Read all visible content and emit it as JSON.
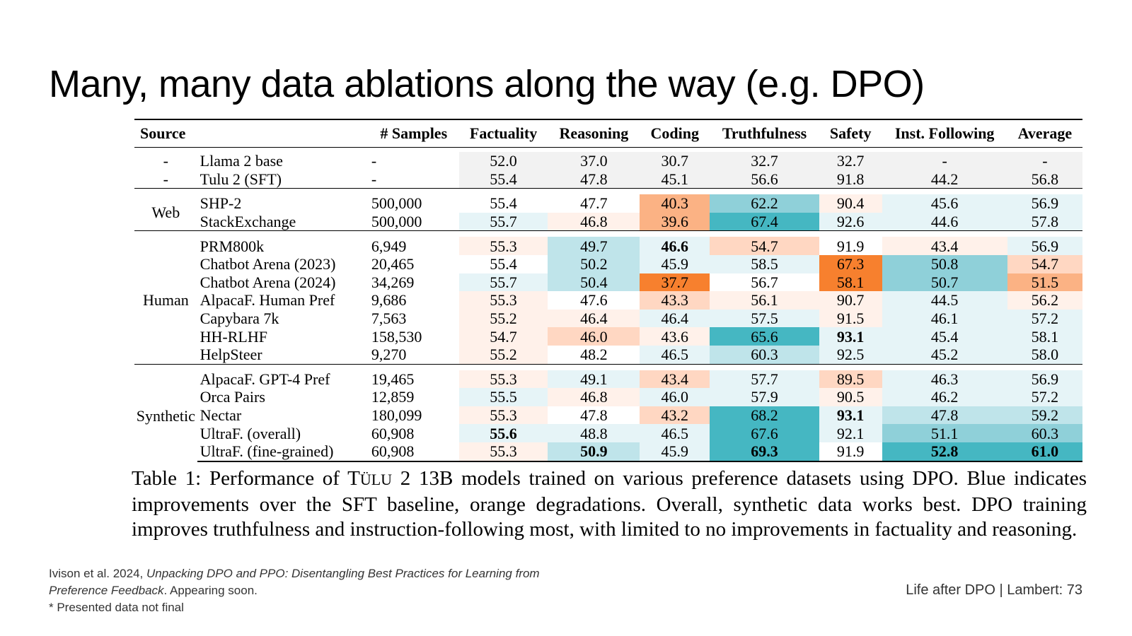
{
  "slide": {
    "title": "Many, many data ablations along the way (e.g. DPO)",
    "footer_right": "Life after DPO | Lambert: 73"
  },
  "citation": {
    "authors": "Ivison et al. 2024, ",
    "paper_title_part1": "Unpacking DPO and PPO: Disentangling Best Practices for Learning from",
    "paper_title_part2": "Preference Feedback",
    "status": ". Appearing soon.",
    "note": "* Presented data not final"
  },
  "table": {
    "headers": [
      "Source",
      "",
      "# Samples",
      "Factuality",
      "Reasoning",
      "Coding",
      "Truthfulness",
      "Safety",
      "Inst. Following",
      "Average"
    ],
    "colors": {
      "b1": "#e6f4f7",
      "b2": "#bfe4ea",
      "b3": "#8fd0d9",
      "b4": "#45b7c2",
      "o1": "#fff1ea",
      "o2": "#ffd7c2",
      "o3": "#fbb284",
      "o4": "#f7802e",
      "n": "#f2f2f2"
    },
    "groups": [
      {
        "source": "",
        "rows": [
          {
            "source": "-",
            "dataset": "Llama 2 base",
            "samples": "-",
            "cells": [
              {
                "v": "52.0",
                "c": "n"
              },
              {
                "v": "37.0",
                "c": "n"
              },
              {
                "v": "30.7",
                "c": "n"
              },
              {
                "v": "32.7",
                "c": "n"
              },
              {
                "v": "32.7",
                "c": "n"
              },
              {
                "v": "-",
                "c": "n"
              },
              {
                "v": "-",
                "c": "n"
              }
            ]
          },
          {
            "source": "-",
            "dataset": "Tulu 2 (SFT)",
            "samples": "-",
            "cells": [
              {
                "v": "55.4",
                "c": "n"
              },
              {
                "v": "47.8",
                "c": "n"
              },
              {
                "v": "45.1",
                "c": "n"
              },
              {
                "v": "56.6",
                "c": "n"
              },
              {
                "v": "91.8",
                "c": "n"
              },
              {
                "v": "44.2",
                "c": "n"
              },
              {
                "v": "56.8",
                "c": "n"
              }
            ]
          }
        ]
      },
      {
        "source": "Web",
        "rows": [
          {
            "dataset": "SHP-2",
            "samples": "500,000",
            "cells": [
              {
                "v": "55.4"
              },
              {
                "v": "47.7"
              },
              {
                "v": "40.3",
                "c": "o3"
              },
              {
                "v": "62.2",
                "c": "b3"
              },
              {
                "v": "90.4",
                "c": "o1"
              },
              {
                "v": "45.6",
                "c": "b1"
              },
              {
                "v": "56.9",
                "c": "b1"
              }
            ]
          },
          {
            "dataset": "StackExchange",
            "samples": "500,000",
            "cells": [
              {
                "v": "55.7",
                "c": "b1"
              },
              {
                "v": "46.8",
                "c": "o1"
              },
              {
                "v": "39.6",
                "c": "o3"
              },
              {
                "v": "67.4",
                "c": "b4"
              },
              {
                "v": "92.6",
                "c": "b1"
              },
              {
                "v": "44.6",
                "c": "b1"
              },
              {
                "v": "57.8",
                "c": "b1"
              }
            ]
          }
        ]
      },
      {
        "source": "Human",
        "rows": [
          {
            "dataset": "PRM800k",
            "samples": "6,949",
            "cells": [
              {
                "v": "55.3",
                "c": "o1"
              },
              {
                "v": "49.7",
                "c": "b2"
              },
              {
                "v": "46.6",
                "c": "b1",
                "b": true
              },
              {
                "v": "54.7",
                "c": "o2"
              },
              {
                "v": "91.9"
              },
              {
                "v": "43.4",
                "c": "o1"
              },
              {
                "v": "56.9",
                "c": "b1"
              }
            ]
          },
          {
            "dataset": "Chatbot Arena (2023)",
            "samples": "20,465",
            "cells": [
              {
                "v": "55.4"
              },
              {
                "v": "50.2",
                "c": "b2"
              },
              {
                "v": "45.9",
                "c": "b1"
              },
              {
                "v": "58.5",
                "c": "b1"
              },
              {
                "v": "67.3",
                "c": "o4"
              },
              {
                "v": "50.8",
                "c": "b3"
              },
              {
                "v": "54.7",
                "c": "o2"
              }
            ]
          },
          {
            "dataset": "Chatbot Arena (2024)",
            "samples": "34,269",
            "cells": [
              {
                "v": "55.7",
                "c": "b1"
              },
              {
                "v": "50.4",
                "c": "b2"
              },
              {
                "v": "37.7",
                "c": "o4"
              },
              {
                "v": "56.7"
              },
              {
                "v": "58.1",
                "c": "o4"
              },
              {
                "v": "50.7",
                "c": "b3"
              },
              {
                "v": "51.5",
                "c": "o3"
              }
            ]
          },
          {
            "dataset": "AlpacaF. Human Pref",
            "samples": "9,686",
            "cells": [
              {
                "v": "55.3",
                "c": "o1"
              },
              {
                "v": "47.6"
              },
              {
                "v": "43.3",
                "c": "o2"
              },
              {
                "v": "56.1",
                "c": "o1"
              },
              {
                "v": "90.7",
                "c": "o1"
              },
              {
                "v": "44.5",
                "c": "b1"
              },
              {
                "v": "56.2",
                "c": "o1"
              }
            ]
          },
          {
            "dataset": "Capybara 7k",
            "samples": "7,563",
            "cells": [
              {
                "v": "55.2",
                "c": "o1"
              },
              {
                "v": "46.4",
                "c": "o1"
              },
              {
                "v": "46.4",
                "c": "b1"
              },
              {
                "v": "57.5",
                "c": "b1"
              },
              {
                "v": "91.5",
                "c": "o1"
              },
              {
                "v": "46.1",
                "c": "b1"
              },
              {
                "v": "57.2",
                "c": "b1"
              }
            ]
          },
          {
            "dataset": "HH-RLHF",
            "samples": "158,530",
            "cells": [
              {
                "v": "54.7",
                "c": "o1"
              },
              {
                "v": "46.0",
                "c": "o2"
              },
              {
                "v": "43.6",
                "c": "o1"
              },
              {
                "v": "65.6",
                "c": "b4"
              },
              {
                "v": "93.1",
                "c": "b1",
                "b": true
              },
              {
                "v": "45.4",
                "c": "b1"
              },
              {
                "v": "58.1",
                "c": "b1"
              }
            ]
          },
          {
            "dataset": "HelpSteer",
            "samples": "9,270",
            "cells": [
              {
                "v": "55.2",
                "c": "o1"
              },
              {
                "v": "48.2"
              },
              {
                "v": "46.5",
                "c": "b1"
              },
              {
                "v": "60.3",
                "c": "b2"
              },
              {
                "v": "92.5",
                "c": "b1"
              },
              {
                "v": "45.2",
                "c": "b1"
              },
              {
                "v": "58.0",
                "c": "b1"
              }
            ]
          }
        ]
      },
      {
        "source": "Synthetic",
        "rows": [
          {
            "dataset": "AlpacaF. GPT-4 Pref",
            "samples": "19,465",
            "cells": [
              {
                "v": "55.3",
                "c": "o1"
              },
              {
                "v": "49.1",
                "c": "b1"
              },
              {
                "v": "43.4",
                "c": "o2"
              },
              {
                "v": "57.7",
                "c": "b1"
              },
              {
                "v": "89.5",
                "c": "o2"
              },
              {
                "v": "46.3",
                "c": "b1"
              },
              {
                "v": "56.9",
                "c": "b1"
              }
            ]
          },
          {
            "dataset": "Orca Pairs",
            "samples": "12,859",
            "cells": [
              {
                "v": "55.5",
                "c": "b1"
              },
              {
                "v": "46.8",
                "c": "o1"
              },
              {
                "v": "46.0",
                "c": "b1"
              },
              {
                "v": "57.9",
                "c": "b1"
              },
              {
                "v": "90.5",
                "c": "o1"
              },
              {
                "v": "46.2",
                "c": "b1"
              },
              {
                "v": "57.2",
                "c": "b1"
              }
            ]
          },
          {
            "dataset": "Nectar",
            "samples": "180,099",
            "cells": [
              {
                "v": "55.3",
                "c": "o1"
              },
              {
                "v": "47.8"
              },
              {
                "v": "43.2",
                "c": "o2"
              },
              {
                "v": "68.2",
                "c": "b4"
              },
              {
                "v": "93.1",
                "c": "b1",
                "b": true
              },
              {
                "v": "47.8",
                "c": "b2"
              },
              {
                "v": "59.2",
                "c": "b2"
              }
            ]
          },
          {
            "dataset": "UltraF. (overall)",
            "samples": "60,908",
            "cells": [
              {
                "v": "55.6",
                "c": "b1",
                "b": true
              },
              {
                "v": "48.8",
                "c": "b1"
              },
              {
                "v": "46.5",
                "c": "b1"
              },
              {
                "v": "67.6",
                "c": "b4"
              },
              {
                "v": "92.1",
                "c": "b1"
              },
              {
                "v": "51.1",
                "c": "b3"
              },
              {
                "v": "60.3",
                "c": "b3"
              }
            ]
          },
          {
            "dataset": "UltraF. (fine-grained)",
            "samples": "60,908",
            "cells": [
              {
                "v": "55.3",
                "c": "o1"
              },
              {
                "v": "50.9",
                "c": "b2",
                "b": true
              },
              {
                "v": "45.9",
                "c": "b1"
              },
              {
                "v": "69.3",
                "c": "b4",
                "b": true
              },
              {
                "v": "91.9"
              },
              {
                "v": "52.8",
                "c": "b4",
                "b": true
              },
              {
                "v": "61.0",
                "c": "b4",
                "b": true
              }
            ]
          }
        ]
      }
    ],
    "caption": {
      "lead": "Table 1: Performance of ",
      "model_t": "T",
      "model_rest": "ÜLU",
      "tail": " 2 13B models trained on various preference datasets using DPO. Blue indicates improvements over the SFT baseline, orange degradations. Overall, synthetic data works best. DPO training improves truthfulness and instruction-following most, with limited to no improvements in factuality and reasoning."
    }
  }
}
